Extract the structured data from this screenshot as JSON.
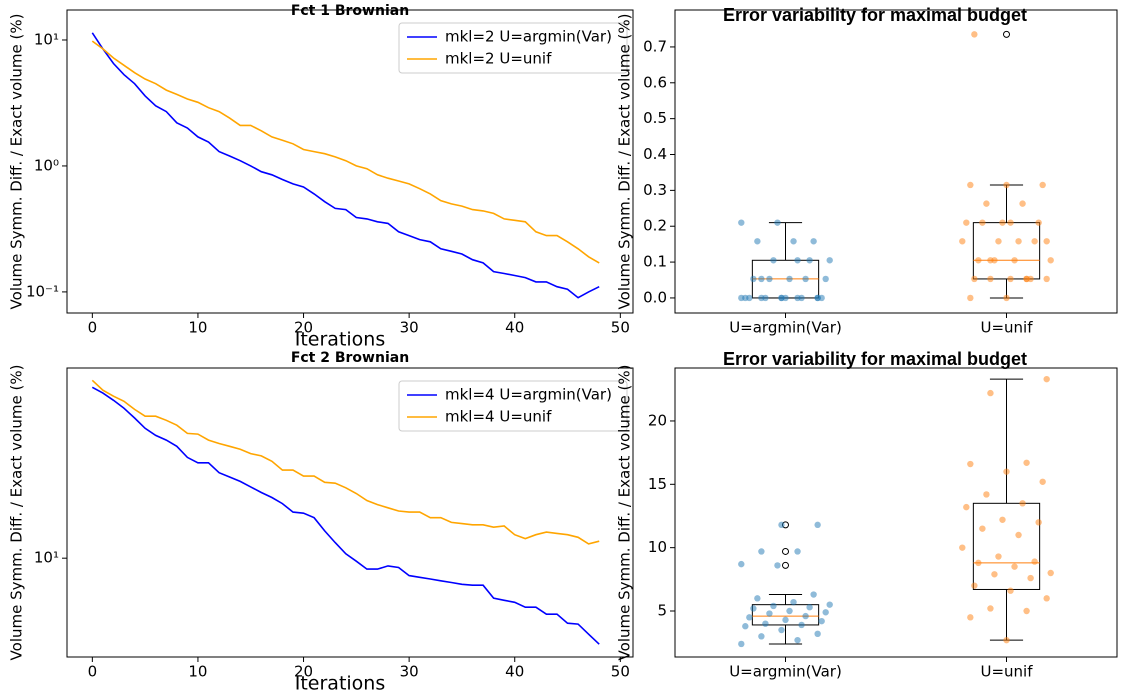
{
  "chart_data": [
    {
      "type": "line",
      "title": "Fct 1 Brownian",
      "xlabel": "Iterations",
      "ylabel": "Volume Symm. Diff. / Exact volume (%)",
      "log": true,
      "legend": "upper right",
      "x": [
        0,
        1,
        2,
        3,
        4,
        5,
        6,
        7,
        8,
        9,
        10,
        11,
        12,
        13,
        14,
        15,
        16,
        17,
        18,
        19,
        20,
        21,
        22,
        23,
        24,
        25,
        26,
        27,
        28,
        29,
        30,
        31,
        32,
        33,
        34,
        35,
        36,
        37,
        38,
        39,
        40,
        41,
        42,
        43,
        44,
        45,
        46,
        47,
        48
      ],
      "xlim": [
        -2.4,
        51.2
      ],
      "xticks": [
        0,
        10,
        20,
        30,
        40,
        50
      ],
      "ylim": [
        0.068,
        17.3
      ],
      "yticks": [
        {
          "value": 0.1,
          "label": "10⁻¹"
        },
        {
          "value": 1,
          "label": "10⁰"
        },
        {
          "value": 10,
          "label": "10¹"
        }
      ],
      "series": [
        {
          "name": "mkl=2 U=argmin(Var)",
          "color": "#0000ff",
          "values": [
            11.4,
            8.5,
            6.5,
            5.3,
            4.5,
            3.6,
            3.0,
            2.7,
            2.2,
            2.0,
            1.7,
            1.55,
            1.3,
            1.2,
            1.1,
            1.0,
            0.9,
            0.85,
            0.78,
            0.72,
            0.68,
            0.6,
            0.52,
            0.46,
            0.45,
            0.39,
            0.38,
            0.36,
            0.35,
            0.3,
            0.28,
            0.26,
            0.25,
            0.22,
            0.21,
            0.2,
            0.18,
            0.17,
            0.145,
            0.14,
            0.135,
            0.13,
            0.12,
            0.12,
            0.11,
            0.105,
            0.09,
            0.1,
            0.11
          ]
        },
        {
          "name": "mkl=2 U=unif",
          "color": "#ffa500",
          "values": [
            9.8,
            8.5,
            7.2,
            6.3,
            5.5,
            4.9,
            4.5,
            4.0,
            3.7,
            3.4,
            3.2,
            2.9,
            2.7,
            2.4,
            2.1,
            2.1,
            1.9,
            1.7,
            1.6,
            1.5,
            1.35,
            1.3,
            1.25,
            1.18,
            1.1,
            1.0,
            0.95,
            0.85,
            0.8,
            0.76,
            0.72,
            0.66,
            0.6,
            0.53,
            0.5,
            0.48,
            0.45,
            0.44,
            0.42,
            0.38,
            0.37,
            0.36,
            0.3,
            0.28,
            0.28,
            0.25,
            0.22,
            0.19,
            0.17
          ]
        }
      ]
    },
    {
      "type": "box",
      "title": "Error variability for maximal budget",
      "ylabel": "Volume Symm. Diff. / Exact volume (%)",
      "categories": [
        "U=argmin(Var)",
        "U=unif"
      ],
      "colors": [
        "#1f77b4",
        "#ff7f0e"
      ],
      "ylim": [
        -0.042,
        0.803
      ],
      "yticks": [
        {
          "value": 0,
          "label": "0.0"
        },
        0.1,
        0.2,
        0.3,
        0.4,
        0.5,
        0.6,
        0.7
      ],
      "boxes": [
        {
          "whislo": 0,
          "q1": 0,
          "med": 0.053,
          "q3": 0.105,
          "whishi": 0.21,
          "fliers": []
        },
        {
          "whislo": 0,
          "q1": 0.053,
          "med": 0.105,
          "q3": 0.21,
          "whishi": 0.315,
          "fliers": [
            0.735
          ]
        }
      ],
      "points": [
        [
          0,
          0,
          0,
          0,
          0,
          0,
          0,
          0,
          0,
          0,
          0,
          0.053,
          0.053,
          0.053,
          0.053,
          0.053,
          0.105,
          0.105,
          0.105,
          0.158,
          0.158,
          0.158,
          0.21,
          0.21,
          0.105,
          0.053,
          0,
          0
        ],
        [
          0,
          0,
          0.053,
          0.053,
          0.053,
          0.053,
          0.053,
          0.053,
          0.105,
          0.105,
          0.105,
          0.105,
          0.158,
          0.158,
          0.158,
          0.158,
          0.21,
          0.21,
          0.21,
          0.21,
          0.263,
          0.263,
          0.315,
          0.315,
          0.315,
          0.053,
          0.105,
          0.158,
          0.21,
          0.735
        ]
      ]
    },
    {
      "type": "line",
      "title": "Fct 2 Brownian",
      "xlabel": "Iterations",
      "ylabel": "Volume Symm. Diff. / Exact volume (%)",
      "log": true,
      "legend": "upper right",
      "x": [
        0,
        1,
        2,
        3,
        4,
        5,
        6,
        7,
        8,
        9,
        10,
        11,
        12,
        13,
        14,
        15,
        16,
        17,
        18,
        19,
        20,
        21,
        22,
        23,
        24,
        25,
        26,
        27,
        28,
        29,
        30,
        31,
        32,
        33,
        34,
        35,
        36,
        37,
        38,
        39,
        40,
        41,
        42,
        43,
        44,
        45,
        46,
        47,
        48
      ],
      "xlim": [
        -2.4,
        51.2
      ],
      "xticks": [
        0,
        10,
        20,
        30,
        40,
        50
      ],
      "ylim": [
        5.17,
        35.6
      ],
      "yticks": [
        {
          "value": 10,
          "label": "10¹"
        }
      ],
      "series": [
        {
          "name": "mkl=4 U=argmin(Var)",
          "color": "#0000ff",
          "values": [
            31.3,
            30.1,
            28.7,
            27.2,
            25.5,
            23.8,
            22.7,
            22.0,
            21.1,
            19.6,
            18.9,
            18.9,
            17.7,
            17.2,
            16.7,
            16.1,
            15.5,
            15.0,
            14.4,
            13.6,
            13.5,
            13.1,
            12.0,
            11.1,
            10.3,
            9.8,
            9.3,
            9.3,
            9.5,
            9.4,
            8.9,
            8.8,
            8.7,
            8.6,
            8.5,
            8.4,
            8.35,
            8.35,
            7.66,
            7.55,
            7.45,
            7.21,
            7.21,
            6.88,
            6.88,
            6.48,
            6.44,
            6.02,
            5.63
          ]
        },
        {
          "name": "mkl=4 U=unif",
          "color": "#ffa500",
          "values": [
            32.8,
            30.7,
            29.5,
            28.5,
            27.0,
            25.8,
            25.8,
            25.1,
            24.3,
            23.0,
            22.9,
            22.0,
            21.5,
            21.1,
            20.7,
            20.1,
            19.8,
            19.1,
            18.0,
            18.0,
            17.3,
            17.3,
            16.6,
            16.5,
            16.0,
            15.4,
            14.7,
            14.3,
            14.0,
            13.7,
            13.6,
            13.6,
            13.1,
            13.1,
            12.7,
            12.6,
            12.5,
            12.5,
            12.3,
            12.4,
            11.7,
            11.4,
            11.7,
            11.9,
            11.8,
            11.7,
            11.5,
            11.0,
            11.2
          ]
        }
      ]
    },
    {
      "type": "box",
      "title": "Error variability for maximal budget",
      "ylabel": "Volume Symm. Diff. / Exact volume (%)",
      "categories": [
        "U=argmin(Var)",
        "U=unif"
      ],
      "colors": [
        "#1f77b4",
        "#ff7f0e"
      ],
      "ylim": [
        1.37,
        24.18
      ],
      "yticks": [
        5,
        10,
        15,
        20
      ],
      "boxes": [
        {
          "whislo": 2.4,
          "q1": 3.9,
          "med": 4.6,
          "q3": 5.5,
          "whishi": 6.3,
          "fliers": [
            8.6,
            9.7,
            11.8
          ]
        },
        {
          "whislo": 2.7,
          "q1": 6.7,
          "med": 8.8,
          "q3": 13.5,
          "whishi": 23.3,
          "fliers": []
        }
      ],
      "points": [
        [
          2.4,
          2.7,
          3.0,
          3.2,
          3.5,
          3.8,
          3.9,
          4.0,
          4.2,
          4.3,
          4.5,
          4.6,
          4.8,
          4.9,
          5.0,
          5.2,
          5.3,
          5.4,
          5.5,
          5.7,
          6.0,
          6.3,
          8.6,
          8.7,
          9.7,
          9.7,
          11.8,
          11.8
        ],
        [
          2.7,
          4.5,
          5.0,
          5.2,
          6.0,
          6.6,
          7.0,
          7.6,
          7.9,
          8.0,
          8.5,
          8.8,
          8.9,
          9.3,
          10.0,
          11.0,
          11.5,
          12.0,
          12.2,
          13.2,
          13.5,
          14.2,
          15.2,
          16.0,
          16.6,
          16.7,
          22.2,
          23.3
        ]
      ]
    }
  ]
}
